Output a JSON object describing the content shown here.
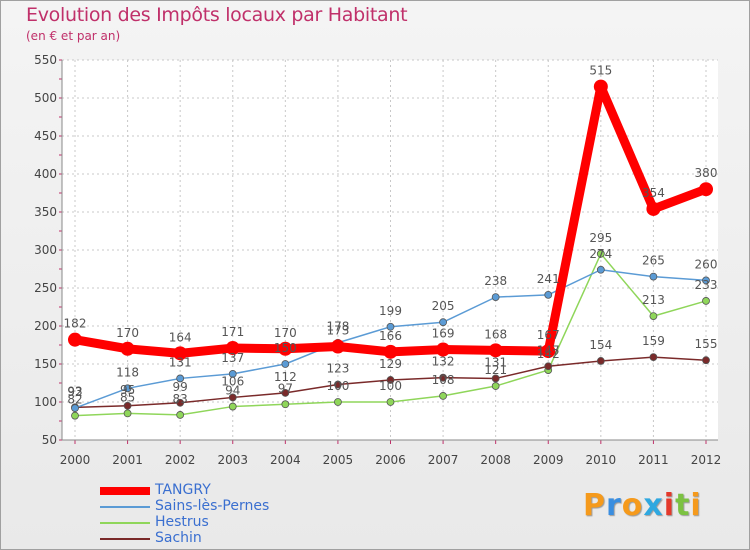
{
  "chart_data": {
    "type": "line",
    "title": "Evolution des Impôts locaux par Habitant",
    "subtitle": "(en € et par an)",
    "x": [
      "2000",
      "2001",
      "2002",
      "2003",
      "2004",
      "2005",
      "2006",
      "2007",
      "2008",
      "2009",
      "2010",
      "2011",
      "2012"
    ],
    "yticks": [
      50,
      100,
      150,
      200,
      250,
      300,
      350,
      400,
      450,
      500,
      550
    ],
    "ylim": [
      50,
      550
    ],
    "series": [
      {
        "name": "TANGRY",
        "color": "#ff0000",
        "values": [
          182,
          170,
          164,
          171,
          170,
          173,
          166,
          169,
          168,
          167,
          515,
          354,
          380
        ],
        "labels": [
          "182",
          "170",
          "164",
          "171",
          "170",
          "173",
          "166",
          "169",
          "168",
          "167",
          "515",
          "354",
          "380"
        ]
      },
      {
        "name": "Sains-lès-Pernes",
        "color": "#5b9bd5",
        "values": [
          92,
          118,
          131,
          137,
          150,
          178,
          199,
          205,
          238,
          241,
          274,
          265,
          260
        ],
        "labels": [
          "92",
          "118",
          "131",
          "137",
          "150",
          "178",
          "199",
          "205",
          "238",
          "241",
          "274",
          "265",
          "260"
        ]
      },
      {
        "name": "Hestrus",
        "color": "#8fd65a",
        "values": [
          82,
          85,
          83,
          94,
          97,
          100,
          100,
          108,
          121,
          142,
          295,
          213,
          233
        ],
        "labels": [
          "82",
          "85",
          "83",
          "94",
          "97",
          "100",
          "100",
          "108",
          "121",
          "142",
          "295",
          "213",
          "233"
        ]
      },
      {
        "name": "Sachin",
        "color": "#7a2a2a",
        "values": [
          93,
          95,
          99,
          106,
          112,
          123,
          129,
          132,
          131,
          147,
          154,
          159,
          155
        ],
        "labels": [
          "93",
          "95",
          "99",
          "106",
          "112",
          "123",
          "129",
          "132",
          "131",
          "147",
          "154",
          "159",
          "155"
        ]
      }
    ]
  },
  "brand": {
    "letters": [
      "P",
      "r",
      "o",
      "x",
      "i",
      "t",
      "i"
    ],
    "colors": [
      "#f59a1c",
      "#3a8ee0",
      "#f59a1c",
      "#2fa8e0",
      "#e4392b",
      "#7cc242",
      "#f59a1c"
    ]
  }
}
